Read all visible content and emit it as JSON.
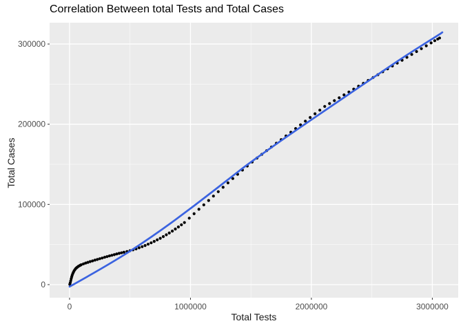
{
  "title": "Correlation Between total Tests and Total Cases",
  "colors": {
    "page_bg": "#FFFFFF",
    "panel_bg": "#EBEBEB",
    "grid_major": "#FFFFFF",
    "grid_minor": "#FFFFFF",
    "point": "#000000",
    "trend_line": "#3B63E0",
    "tick_mark": "#333333",
    "tick_label": "#4D4D4D",
    "axis_title": "#1A1A1A",
    "title_text": "#000000"
  },
  "chart_data": {
    "type": "scatter",
    "title": "Correlation Between total Tests and Total Cases",
    "xlabel": "Total Tests",
    "ylabel": "Total Cases",
    "legend": "none",
    "grid": "on",
    "xlim": [
      -165000,
      3214000
    ],
    "ylim": [
      -16300,
      326600
    ],
    "x_major_ticks": [
      0,
      1000000,
      2000000,
      3000000
    ],
    "x_tick_labels": [
      "0",
      "1000000",
      "2000000",
      "3000000"
    ],
    "x_minor_ticks": [
      500000,
      1500000,
      2500000
    ],
    "y_major_ticks": [
      0,
      100000,
      200000,
      300000
    ],
    "y_tick_labels": [
      "0",
      "100000",
      "200000",
      "300000"
    ],
    "y_minor_ticks": [
      50000,
      150000,
      250000
    ],
    "trend_line": {
      "type": "smooth",
      "points": [
        [
          0,
          -2500
        ],
        [
          336000,
          25700
        ],
        [
          678000,
          59100
        ],
        [
          1020000,
          96900
        ],
        [
          1362000,
          137100
        ],
        [
          1504000,
          153400
        ],
        [
          1818000,
          186900
        ],
        [
          2160000,
          222000
        ],
        [
          2502000,
          257100
        ],
        [
          2787000,
          286300
        ],
        [
          3060000,
          312000
        ],
        [
          3083000,
          314600
        ]
      ]
    },
    "points": [
      [
        2000,
        300
      ],
      [
        6000,
        2500
      ],
      [
        10000,
        5000
      ],
      [
        14000,
        7500
      ],
      [
        18000,
        9800
      ],
      [
        22000,
        11800
      ],
      [
        27000,
        13800
      ],
      [
        32000,
        15500
      ],
      [
        38000,
        17200
      ],
      [
        44000,
        18600
      ],
      [
        50000,
        19800
      ],
      [
        57000,
        20900
      ],
      [
        64000,
        21800
      ],
      [
        72000,
        22700
      ],
      [
        80000,
        23400
      ],
      [
        88000,
        24100
      ],
      [
        96000,
        24800
      ],
      [
        115000,
        25900
      ],
      [
        133000,
        26900
      ],
      [
        151000,
        27800
      ],
      [
        170000,
        28700
      ],
      [
        190000,
        29600
      ],
      [
        210000,
        30500
      ],
      [
        230000,
        31400
      ],
      [
        250000,
        32300
      ],
      [
        270000,
        33200
      ],
      [
        290000,
        34100
      ],
      [
        310000,
        35000
      ],
      [
        330000,
        35800
      ],
      [
        350000,
        36600
      ],
      [
        370000,
        37400
      ],
      [
        390000,
        38200
      ],
      [
        410000,
        39000
      ],
      [
        430000,
        39700
      ],
      [
        450000,
        40400
      ],
      [
        475000,
        41300
      ],
      [
        500000,
        42300
      ],
      [
        525000,
        43400
      ],
      [
        550000,
        44600
      ],
      [
        575000,
        45900
      ],
      [
        600000,
        47300
      ],
      [
        625000,
        48800
      ],
      [
        650000,
        50400
      ],
      [
        675000,
        52100
      ],
      [
        700000,
        53900
      ],
      [
        725000,
        55800
      ],
      [
        750000,
        57800
      ],
      [
        775000,
        59900
      ],
      [
        800000,
        62100
      ],
      [
        825000,
        64400
      ],
      [
        850000,
        66800
      ],
      [
        875000,
        69300
      ],
      [
        900000,
        71900
      ],
      [
        925000,
        74600
      ],
      [
        950000,
        77400
      ],
      [
        990000,
        82900
      ],
      [
        1030000,
        88400
      ],
      [
        1070000,
        93900
      ],
      [
        1110000,
        99400
      ],
      [
        1150000,
        104900
      ],
      [
        1190000,
        110400
      ],
      [
        1230000,
        115900
      ],
      [
        1270000,
        121400
      ],
      [
        1310000,
        126900
      ],
      [
        1350000,
        132300
      ],
      [
        1390000,
        137600
      ],
      [
        1430000,
        142800
      ],
      [
        1470000,
        147900
      ],
      [
        1510000,
        152900
      ],
      [
        1550000,
        157800
      ],
      [
        1590000,
        162400
      ],
      [
        1630000,
        167000
      ],
      [
        1670000,
        171600
      ],
      [
        1710000,
        176200
      ],
      [
        1750000,
        180800
      ],
      [
        1790000,
        185400
      ],
      [
        1830000,
        190000
      ],
      [
        1870000,
        194600
      ],
      [
        1910000,
        199200
      ],
      [
        1950000,
        203800
      ],
      [
        1990000,
        208400
      ],
      [
        2030000,
        213000
      ],
      [
        2070000,
        217600
      ],
      [
        2110000,
        222200
      ],
      [
        2150000,
        225800
      ],
      [
        2190000,
        229400
      ],
      [
        2230000,
        233000
      ],
      [
        2270000,
        236600
      ],
      [
        2310000,
        240200
      ],
      [
        2350000,
        243800
      ],
      [
        2390000,
        247400
      ],
      [
        2430000,
        251000
      ],
      [
        2470000,
        254600
      ],
      [
        2510000,
        258200
      ],
      [
        2550000,
        261800
      ],
      [
        2590000,
        265400
      ],
      [
        2630000,
        269000
      ],
      [
        2670000,
        272600
      ],
      [
        2710000,
        276200
      ],
      [
        2750000,
        279800
      ],
      [
        2790000,
        283400
      ],
      [
        2830000,
        287000
      ],
      [
        2870000,
        290600
      ],
      [
        2910000,
        294200
      ],
      [
        2950000,
        297800
      ],
      [
        2990000,
        301400
      ],
      [
        3020000,
        304100
      ],
      [
        3045000,
        306200
      ],
      [
        3060000,
        307500
      ]
    ]
  }
}
